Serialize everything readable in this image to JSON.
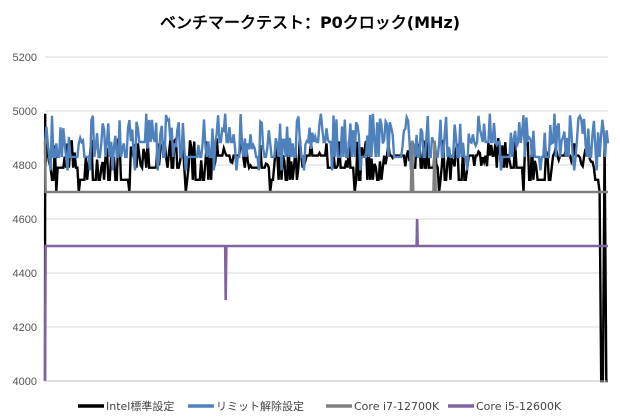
{
  "chart_data": {
    "type": "line",
    "title": "ベンチマークテスト：P0クロック(MHz)",
    "xlabel": "",
    "ylabel": "",
    "ylim": [
      4000,
      5200
    ],
    "yticks": [
      4000,
      4200,
      4400,
      4600,
      4800,
      5000,
      5200
    ],
    "grid": true,
    "legend_position": "bottom",
    "series": [
      {
        "name": "Intel標準設定",
        "color": "#000000",
        "approx_range": [
          4700,
          4900
        ],
        "points": [
          [
            0,
            4000
          ],
          [
            0.3,
            4990
          ],
          [
            0.6,
            4790
          ],
          [
            10,
            4790
          ],
          [
            20,
            4700
          ],
          [
            40,
            4880
          ],
          [
            60,
            4700
          ],
          [
            100,
            4790
          ],
          [
            150,
            4700
          ],
          [
            200,
            4880
          ],
          [
            250,
            4700
          ],
          [
            300,
            4790
          ],
          [
            350,
            4880
          ],
          [
            400,
            4700
          ],
          [
            450,
            4790
          ],
          [
            500,
            4880
          ],
          [
            550,
            4700
          ],
          [
            600,
            4790
          ],
          [
            650,
            4880
          ],
          [
            700,
            4700
          ],
          [
            750,
            4790
          ],
          [
            800,
            4880
          ],
          [
            850,
            4700
          ],
          [
            900,
            4790
          ],
          [
            940,
            4880
          ],
          [
            975,
            4790
          ],
          [
            985,
            4700
          ],
          [
            988,
            4000
          ],
          [
            1000,
            4000
          ]
        ]
      },
      {
        "name": "リミット解除設定",
        "color": "#4f81bd",
        "approx_range": [
          4750,
          4990
        ],
        "points": [
          [
            0,
            4880
          ],
          [
            10,
            4780
          ],
          [
            20,
            4880
          ],
          [
            40,
            4780
          ],
          [
            60,
            4880
          ],
          [
            80,
            4780
          ],
          [
            100,
            4880
          ],
          [
            120,
            4780
          ],
          [
            140,
            4880
          ],
          [
            160,
            4780
          ],
          [
            180,
            4990
          ],
          [
            200,
            4780
          ],
          [
            230,
            4880
          ],
          [
            250,
            4780
          ],
          [
            280,
            4880
          ],
          [
            300,
            4780
          ],
          [
            320,
            4990
          ],
          [
            340,
            4780
          ],
          [
            360,
            4880
          ],
          [
            380,
            4780
          ],
          [
            400,
            4880
          ],
          [
            420,
            4780
          ],
          [
            440,
            4880
          ],
          [
            460,
            4780
          ],
          [
            490,
            4990
          ],
          [
            510,
            4780
          ],
          [
            540,
            4880
          ],
          [
            560,
            4780
          ],
          [
            600,
            4880
          ],
          [
            650,
            4780
          ],
          [
            700,
            4880
          ],
          [
            750,
            4780
          ],
          [
            790,
            4990
          ],
          [
            810,
            4780
          ],
          [
            840,
            4880
          ],
          [
            880,
            4780
          ],
          [
            900,
            4880
          ],
          [
            940,
            4780
          ],
          [
            960,
            4880
          ],
          [
            980,
            4780
          ],
          [
            1000,
            4880
          ]
        ]
      },
      {
        "name": "Core i7-12700K",
        "color": "#808080",
        "approx_range": [
          4700,
          4700
        ],
        "points": [
          [
            0,
            4890
          ],
          [
            1,
            4700
          ],
          [
            650,
            4700
          ],
          [
            652,
            4890
          ],
          [
            654,
            4700
          ],
          [
            690,
            4700
          ],
          [
            692,
            4890
          ],
          [
            694,
            4700
          ],
          [
            1000,
            4700
          ]
        ]
      },
      {
        "name": "Core i5-12600K",
        "color": "#8064a2",
        "approx_range": [
          4500,
          4500
        ],
        "points": [
          [
            0,
            4000
          ],
          [
            1,
            4500
          ],
          [
            320,
            4500
          ],
          [
            321,
            4300
          ],
          [
            322,
            4500
          ],
          [
            660,
            4500
          ],
          [
            661,
            4600
          ],
          [
            662,
            4500
          ],
          [
            1000,
            4500
          ]
        ]
      }
    ]
  }
}
